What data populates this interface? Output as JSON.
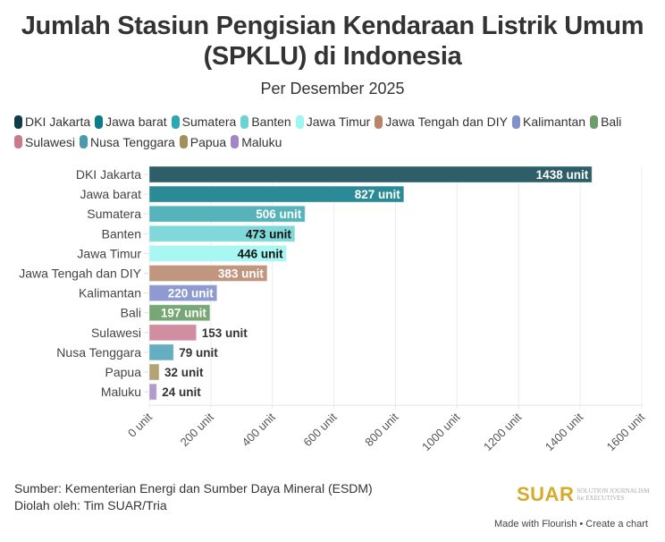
{
  "header": {
    "title_line1": "Jumlah Stasiun Pengisian Kendaraan Listrik Umum",
    "title_line2": "(SPKLU) di Indonesia",
    "subtitle": "Per Desember 2025"
  },
  "chart_data": {
    "type": "bar",
    "orientation": "horizontal",
    "title": "Jumlah Stasiun Pengisian Kendaraan Listrik Umum (SPKLU) di Indonesia",
    "subtitle": "Per Desember 2025",
    "xlabel": "",
    "ylabel": "",
    "unit_suffix": " unit",
    "xlim": [
      0,
      1600
    ],
    "x_ticks": [
      0,
      200,
      400,
      600,
      800,
      1000,
      1200,
      1400,
      1600
    ],
    "x_tick_labels": [
      "0 unit",
      "200 unit",
      "400 unit",
      "600 unit",
      "800 unit",
      "1000 unit",
      "1200 unit",
      "1400 unit",
      "1600 unit"
    ],
    "grid": true,
    "legend_position": "top",
    "categories": [
      "DKI Jakarta",
      "Jawa barat",
      "Sumatera",
      "Banten",
      "Jawa Timur",
      "Jawa Tengah dan DIY",
      "Kalimantan",
      "Bali",
      "Sulawesi",
      "Nusa Tenggara",
      "Papua",
      "Maluku"
    ],
    "values": [
      1438,
      827,
      506,
      473,
      446,
      383,
      220,
      197,
      153,
      79,
      32,
      24
    ],
    "data_labels": [
      "1438 unit",
      "827 unit",
      "506 unit",
      "473 unit",
      "446 unit",
      "383 unit",
      "220 unit",
      "197 unit",
      "153 unit",
      "79 unit",
      "32 unit",
      "24 unit"
    ],
    "colors": [
      "#2e5e68",
      "#2a8b96",
      "#56b3b9",
      "#80d8d8",
      "#a8f7f2",
      "#c1967f",
      "#8f9bd0",
      "#77a774",
      "#d08ea0",
      "#63aec0",
      "#b2a474",
      "#b29ccf"
    ],
    "label_styles": [
      "inside-white",
      "inside-white",
      "inside-white",
      "inside-dark",
      "inside-dark",
      "inside-white",
      "inside-white",
      "inside-white",
      "outside",
      "outside",
      "outside",
      "outside"
    ]
  },
  "legend": {
    "items": [
      "DKI Jakarta",
      "Jawa barat",
      "Sumatera",
      "Banten",
      "Jawa Timur",
      "Jawa Tengah dan DIY",
      "Kalimantan",
      "Bali",
      "Sulawesi",
      "Nusa Tenggara",
      "Papua",
      "Maluku"
    ],
    "colors": [
      "#0f3d48",
      "#0d7c8a",
      "#2aa9b0",
      "#6ad3d3",
      "#9cf7f0",
      "#b98469",
      "#8290cc",
      "#6b9e6b",
      "#c97a8d",
      "#4a9ab0",
      "#a28f5c",
      "#a185c4"
    ]
  },
  "footer": {
    "source": "Sumber: Kementerian Energi dan Sumber Daya Mineral (ESDM)",
    "processed_by": "Diolah oleh: Tim SUAR/Tria",
    "logo_text": "SUAR",
    "logo_sub1": "SOLUTION JOURNALISM",
    "logo_sub2": "for EXECUTIVES",
    "made_with": "Made with Flourish • Create a chart"
  }
}
